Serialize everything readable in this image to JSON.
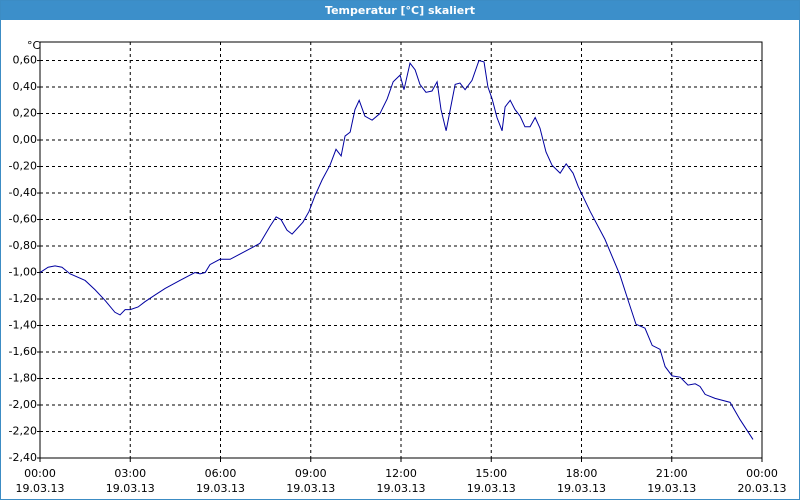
{
  "window_title": "Temperatur [°C] skaliert",
  "chart_data": {
    "type": "line",
    "y_unit": "°C",
    "x": [
      0,
      0.27,
      0.5,
      0.73,
      1.0,
      1.5,
      1.83,
      2.16,
      2.49,
      2.66,
      2.83,
      3.0,
      3.26,
      3.49,
      3.82,
      4.16,
      4.65,
      5.15,
      5.32,
      5.49,
      5.65,
      5.98,
      6.32,
      6.82,
      7.31,
      7.65,
      7.85,
      8.01,
      8.21,
      8.38,
      8.58,
      8.74,
      8.94,
      9.14,
      9.38,
      9.64,
      9.84,
      10.01,
      10.14,
      10.31,
      10.47,
      10.61,
      10.8,
      11.04,
      11.3,
      11.54,
      11.74,
      11.97,
      12.1,
      12.3,
      12.47,
      12.63,
      12.83,
      13.03,
      13.2,
      13.33,
      13.5,
      13.8,
      13.96,
      14.13,
      14.36,
      14.59,
      14.76,
      14.89,
      15.03,
      15.19,
      15.36,
      15.46,
      15.63,
      15.79,
      15.96,
      16.12,
      16.29,
      16.46,
      16.62,
      16.82,
      17.02,
      17.29,
      17.49,
      17.72,
      17.89,
      18.29,
      18.78,
      19.28,
      19.55,
      19.81,
      20.11,
      20.35,
      20.61,
      20.78,
      21.01,
      21.28,
      21.54,
      21.78,
      21.94,
      22.11,
      22.44,
      22.94,
      23.27,
      23.7
    ],
    "series": [
      {
        "name": "Temperatur",
        "color": "#0000a0",
        "values": [
          -1.0,
          -0.96,
          -0.95,
          -0.96,
          -1.01,
          -1.06,
          -1.13,
          -1.21,
          -1.3,
          -1.32,
          -1.28,
          -1.28,
          -1.26,
          -1.22,
          -1.17,
          -1.12,
          -1.06,
          -1.0,
          -1.01,
          -1.0,
          -0.94,
          -0.9,
          -0.9,
          -0.84,
          -0.78,
          -0.65,
          -0.58,
          -0.6,
          -0.68,
          -0.71,
          -0.66,
          -0.62,
          -0.54,
          -0.42,
          -0.3,
          -0.19,
          -0.07,
          -0.12,
          0.03,
          0.06,
          0.23,
          0.3,
          0.18,
          0.15,
          0.2,
          0.31,
          0.44,
          0.49,
          0.38,
          0.58,
          0.53,
          0.42,
          0.36,
          0.37,
          0.44,
          0.23,
          0.07,
          0.42,
          0.43,
          0.38,
          0.45,
          0.6,
          0.59,
          0.4,
          0.31,
          0.17,
          0.07,
          0.25,
          0.3,
          0.23,
          0.18,
          0.1,
          0.1,
          0.17,
          0.09,
          -0.09,
          -0.19,
          -0.25,
          -0.18,
          -0.25,
          -0.35,
          -0.54,
          -0.75,
          -1.02,
          -1.21,
          -1.39,
          -1.42,
          -1.55,
          -1.58,
          -1.71,
          -1.78,
          -1.79,
          -1.85,
          -1.84,
          -1.86,
          -1.92,
          -1.95,
          -1.98,
          -2.11,
          -2.26
        ]
      }
    ],
    "xlim": [
      0,
      24
    ],
    "xticks": [
      {
        "value": 0,
        "label": "00:00\n19.03.13"
      },
      {
        "value": 3,
        "label": "03:00\n19.03.13"
      },
      {
        "value": 6,
        "label": "06:00\n19.03.13"
      },
      {
        "value": 9,
        "label": "09:00\n19.03.13"
      },
      {
        "value": 12,
        "label": "12:00\n19.03.13"
      },
      {
        "value": 15,
        "label": "15:00\n19.03.13"
      },
      {
        "value": 18,
        "label": "18:00\n19.03.13"
      },
      {
        "value": 21,
        "label": "21:00\n19.03.13"
      },
      {
        "value": 24,
        "label": "00:00\n20.03.13"
      }
    ],
    "ylim": [
      -2.4,
      0.74
    ],
    "yticks": [
      {
        "value": -2.4,
        "label": "-2,40"
      },
      {
        "value": -2.2,
        "label": "-2,20"
      },
      {
        "value": -2.0,
        "label": "-2,00"
      },
      {
        "value": -1.8,
        "label": "-1,80"
      },
      {
        "value": -1.6,
        "label": "-1,60"
      },
      {
        "value": -1.4,
        "label": "-1,40"
      },
      {
        "value": -1.2,
        "label": "-1,20"
      },
      {
        "value": -1.0,
        "label": "-1,00"
      },
      {
        "value": -0.8,
        "label": "-0,80"
      },
      {
        "value": -0.6,
        "label": "-0,60"
      },
      {
        "value": -0.4,
        "label": "-0,40"
      },
      {
        "value": -0.2,
        "label": "-0,20"
      },
      {
        "value": 0,
        "label": "0,00"
      },
      {
        "value": 0.2,
        "label": "0,20"
      },
      {
        "value": 0.4,
        "label": "0,40"
      },
      {
        "value": 0.6,
        "label": "0,60"
      }
    ],
    "grid": true
  }
}
